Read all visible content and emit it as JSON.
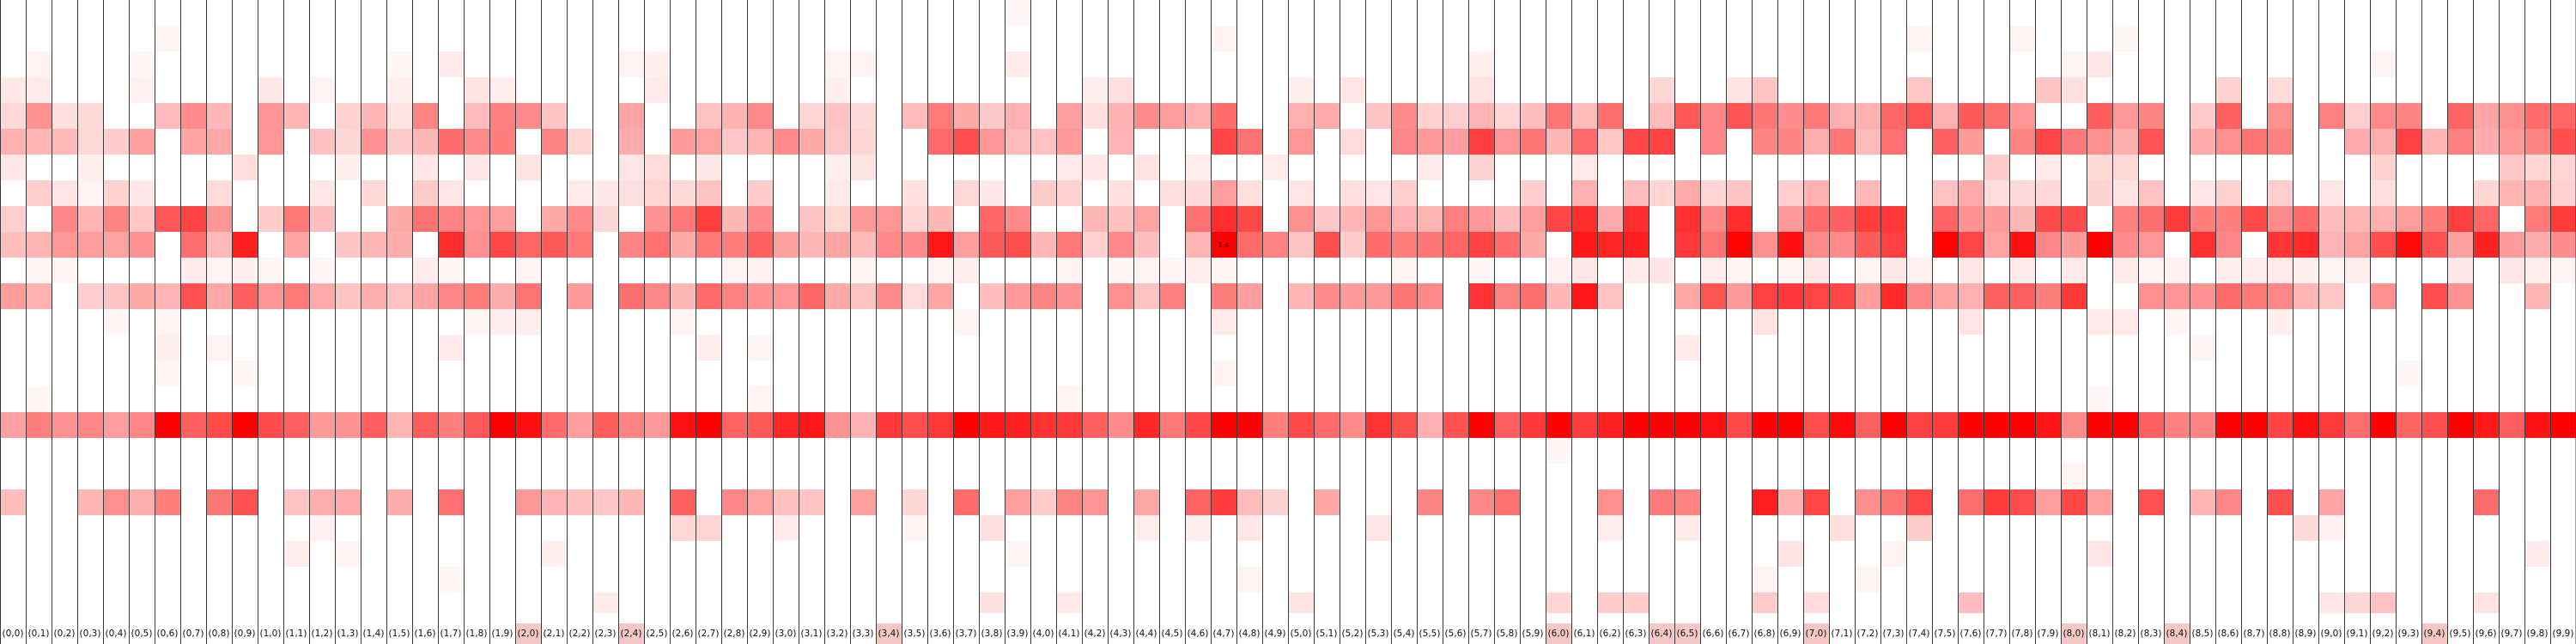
{
  "chart_data": {
    "type": "heatmap",
    "title": "",
    "xlabel": "",
    "ylabel": "",
    "grid": true,
    "legend": "none",
    "color_low": "#ffffff",
    "color_high": "#ff0000",
    "row_count": 25,
    "column_labels": [
      "(0,0)",
      "(0,1)",
      "(0,2)",
      "(0,3)",
      "(0,4)",
      "(0,5)",
      "(0,6)",
      "(0,7)",
      "(0,8)",
      "(0,9)",
      "(1,0)",
      "(1,1)",
      "(1,2)",
      "(1,3)",
      "(1,4)",
      "(1,5)",
      "(1,6)",
      "(1,7)",
      "(1,8)",
      "(1,9)",
      "(2,0)",
      "(2,1)",
      "(2,2)",
      "(2,3)",
      "(2,4)",
      "(2,5)",
      "(2,6)",
      "(2,7)",
      "(2,8)",
      "(2,9)",
      "(3,0)",
      "(3,1)",
      "(3,2)",
      "(3,3)",
      "(3,4)",
      "(3,5)",
      "(3,6)",
      "(3,7)",
      "(3,8)",
      "(3,9)",
      "(4,0)",
      "(4,1)",
      "(4,2)",
      "(4,3)",
      "(4,4)",
      "(4,5)",
      "(4,6)",
      "(4,7)",
      "(4,8)",
      "(4,9)",
      "(5,0)",
      "(5,1)",
      "(5,2)",
      "(5,3)",
      "(5,4)",
      "(5,5)",
      "(5,6)",
      "(5,7)",
      "(5,8)",
      "(5,9)",
      "(6,0)",
      "(6,1)",
      "(6,2)",
      "(6,3)",
      "(6,4)",
      "(6,5)",
      "(6,6)",
      "(6,7)",
      "(6,8)",
      "(6,9)",
      "(7,0)",
      "(7,1)",
      "(7,2)",
      "(7,3)",
      "(7,4)",
      "(7,5)",
      "(7,6)",
      "(7,7)",
      "(7,8)",
      "(7,9)",
      "(8,0)",
      "(8,1)",
      "(8,2)",
      "(8,3)",
      "(8,4)",
      "(8,5)",
      "(8,6)",
      "(8,7)",
      "(8,8)",
      "(8,9)",
      "(9,0)",
      "(9,1)",
      "(9,2)",
      "(9,3)",
      "(9,4)",
      "(9,5)",
      "(9,6)",
      "(9,7)",
      "(9,8)",
      "(9,9)"
    ],
    "highlighted_labels": [
      "(2,0)",
      "(2,4)",
      "(3,4)",
      "(6,0)",
      "(6,4)",
      "(6,5)",
      "(7,0)",
      "(8,0)",
      "(8,4)",
      "(9,4)"
    ],
    "label_highlight_color": "#f7c6c6",
    "cell_annotations": [
      {
        "row": 9,
        "col": 47,
        "text": "1.4"
      }
    ],
    "row_profile": [
      0.02,
      0.03,
      0.06,
      0.12,
      0.35,
      0.4,
      0.12,
      0.18,
      0.45,
      0.55,
      0.05,
      0.45,
      0.06,
      0.05,
      0.03,
      0.04,
      0.75,
      0.02,
      0.03,
      0.45,
      0.1,
      0.06,
      0.03,
      0.15,
      0.03
    ],
    "row_sparsity": [
      0.96,
      0.92,
      0.88,
      0.75,
      0.25,
      0.3,
      0.6,
      0.4,
      0.15,
      0.1,
      0.55,
      0.2,
      0.85,
      0.92,
      0.95,
      0.9,
      0.0,
      0.97,
      0.95,
      0.4,
      0.8,
      0.88,
      0.95,
      0.85,
      0.97
    ],
    "column_intensity": [
      0.7,
      1.0,
      0.8,
      0.6,
      0.9,
      0.7,
      1.1,
      1.4,
      0.9,
      1.2,
      0.9,
      1.0,
      0.6,
      0.7,
      0.9,
      0.6,
      1.1,
      1.2,
      0.9,
      1.1,
      1.0,
      1.1,
      0.9,
      0.8,
      1.0,
      0.9,
      1.2,
      1.3,
      1.0,
      1.1,
      0.9,
      1.0,
      0.6,
      0.7,
      0.8,
      0.7,
      1.3,
      1.5,
      1.0,
      1.2,
      1.0,
      0.9,
      0.7,
      0.8,
      1.0,
      0.9,
      1.1,
      1.6,
      1.2,
      0.8,
      0.8,
      1.0,
      0.7,
      0.8,
      1.0,
      0.8,
      1.2,
      1.4,
      1.0,
      1.1,
      1.3,
      1.5,
      1.2,
      1.4,
      1.5,
      1.4,
      1.6,
      1.6,
      1.5,
      1.3,
      1.4,
      1.5,
      1.3,
      1.4,
      1.6,
      1.5,
      1.4,
      1.3,
      1.3,
      1.4,
      1.3,
      1.4,
      1.2,
      1.3,
      1.3,
      1.2,
      1.4,
      1.5,
      1.3,
      1.2,
      1.1,
      1.1,
      1.3,
      1.4,
      1.3,
      1.4,
      1.2,
      1.5,
      1.3,
      1.4
    ]
  }
}
